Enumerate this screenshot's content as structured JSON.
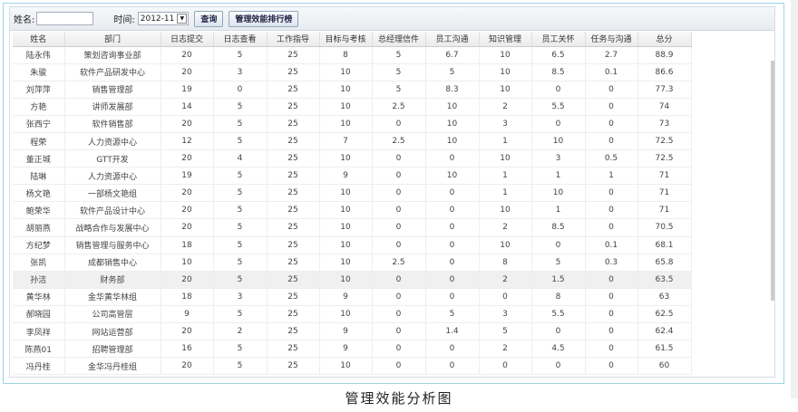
{
  "toolbar": {
    "name_label": "姓名:",
    "name_value": "",
    "time_label": "时间:",
    "time_value": "2012-11",
    "query_button": "查询",
    "ranking_button": "管理效能排行榜"
  },
  "columns": [
    "姓名",
    "部门",
    "日志提交",
    "日志查看",
    "工作指导",
    "目标与考核",
    "总经理信件",
    "员工沟通",
    "知识管理",
    "员工关怀",
    "任务与沟通",
    "总分"
  ],
  "rows": [
    [
      "陆永伟",
      "策划咨询事业部",
      "20",
      "5",
      "25",
      "8",
      "5",
      "6.7",
      "10",
      "6.5",
      "2.7",
      "88.9"
    ],
    [
      "朱骏",
      "软件产品研发中心",
      "20",
      "3",
      "25",
      "10",
      "5",
      "5",
      "10",
      "8.5",
      "0.1",
      "86.6"
    ],
    [
      "刘萍萍",
      "销售管理部",
      "19",
      "0",
      "25",
      "10",
      "5",
      "8.3",
      "10",
      "0",
      "0",
      "77.3"
    ],
    [
      "方艳",
      "讲师发展部",
      "14",
      "5",
      "25",
      "10",
      "2.5",
      "10",
      "2",
      "5.5",
      "0",
      "74"
    ],
    [
      "张西宁",
      "软件销售部",
      "20",
      "5",
      "25",
      "10",
      "0",
      "10",
      "3",
      "0",
      "0",
      "73"
    ],
    [
      "程荣",
      "人力资源中心",
      "12",
      "5",
      "25",
      "7",
      "2.5",
      "10",
      "1",
      "10",
      "0",
      "72.5"
    ],
    [
      "董正城",
      "GTT开发",
      "20",
      "4",
      "25",
      "10",
      "0",
      "0",
      "10",
      "3",
      "0.5",
      "72.5"
    ],
    [
      "陆琳",
      "人力资源中心",
      "19",
      "5",
      "25",
      "9",
      "0",
      "10",
      "1",
      "1",
      "1",
      "71"
    ],
    [
      "杨文艳",
      "一部杨文艳组",
      "20",
      "5",
      "25",
      "10",
      "0",
      "0",
      "1",
      "10",
      "0",
      "71"
    ],
    [
      "鲍荣华",
      "软件产品设计中心",
      "20",
      "5",
      "25",
      "10",
      "0",
      "0",
      "10",
      "1",
      "0",
      "71"
    ],
    [
      "胡丽燕",
      "战略合作与发展中心",
      "20",
      "5",
      "25",
      "10",
      "0",
      "0",
      "2",
      "8.5",
      "0",
      "70.5"
    ],
    [
      "方纪梦",
      "销售管理与服务中心",
      "18",
      "5",
      "25",
      "10",
      "0",
      "0",
      "10",
      "0",
      "0.1",
      "68.1"
    ],
    [
      "张凯",
      "成都销售中心",
      "10",
      "5",
      "25",
      "10",
      "2.5",
      "0",
      "8",
      "5",
      "0.3",
      "65.8"
    ],
    [
      "孙洁",
      "财务部",
      "20",
      "5",
      "25",
      "10",
      "0",
      "0",
      "2",
      "1.5",
      "0",
      "63.5"
    ],
    [
      "黄华林",
      "金华黄华林组",
      "18",
      "3",
      "25",
      "9",
      "0",
      "0",
      "0",
      "8",
      "0",
      "63"
    ],
    [
      "郝晓园",
      "公司高管层",
      "9",
      "5",
      "25",
      "10",
      "0",
      "5",
      "3",
      "5.5",
      "0",
      "62.5"
    ],
    [
      "李凤祥",
      "网站运营部",
      "20",
      "2",
      "25",
      "9",
      "0",
      "1.4",
      "5",
      "0",
      "0",
      "62.4"
    ],
    [
      "陈燕01",
      "招聘管理部",
      "16",
      "5",
      "25",
      "9",
      "0",
      "0",
      "2",
      "4.5",
      "0",
      "61.5"
    ],
    [
      "冯丹桂",
      "金华冯丹桂组",
      "20",
      "5",
      "25",
      "10",
      "0",
      "0",
      "0",
      "0",
      "0",
      "60"
    ]
  ],
  "caption": "管理效能分析图"
}
